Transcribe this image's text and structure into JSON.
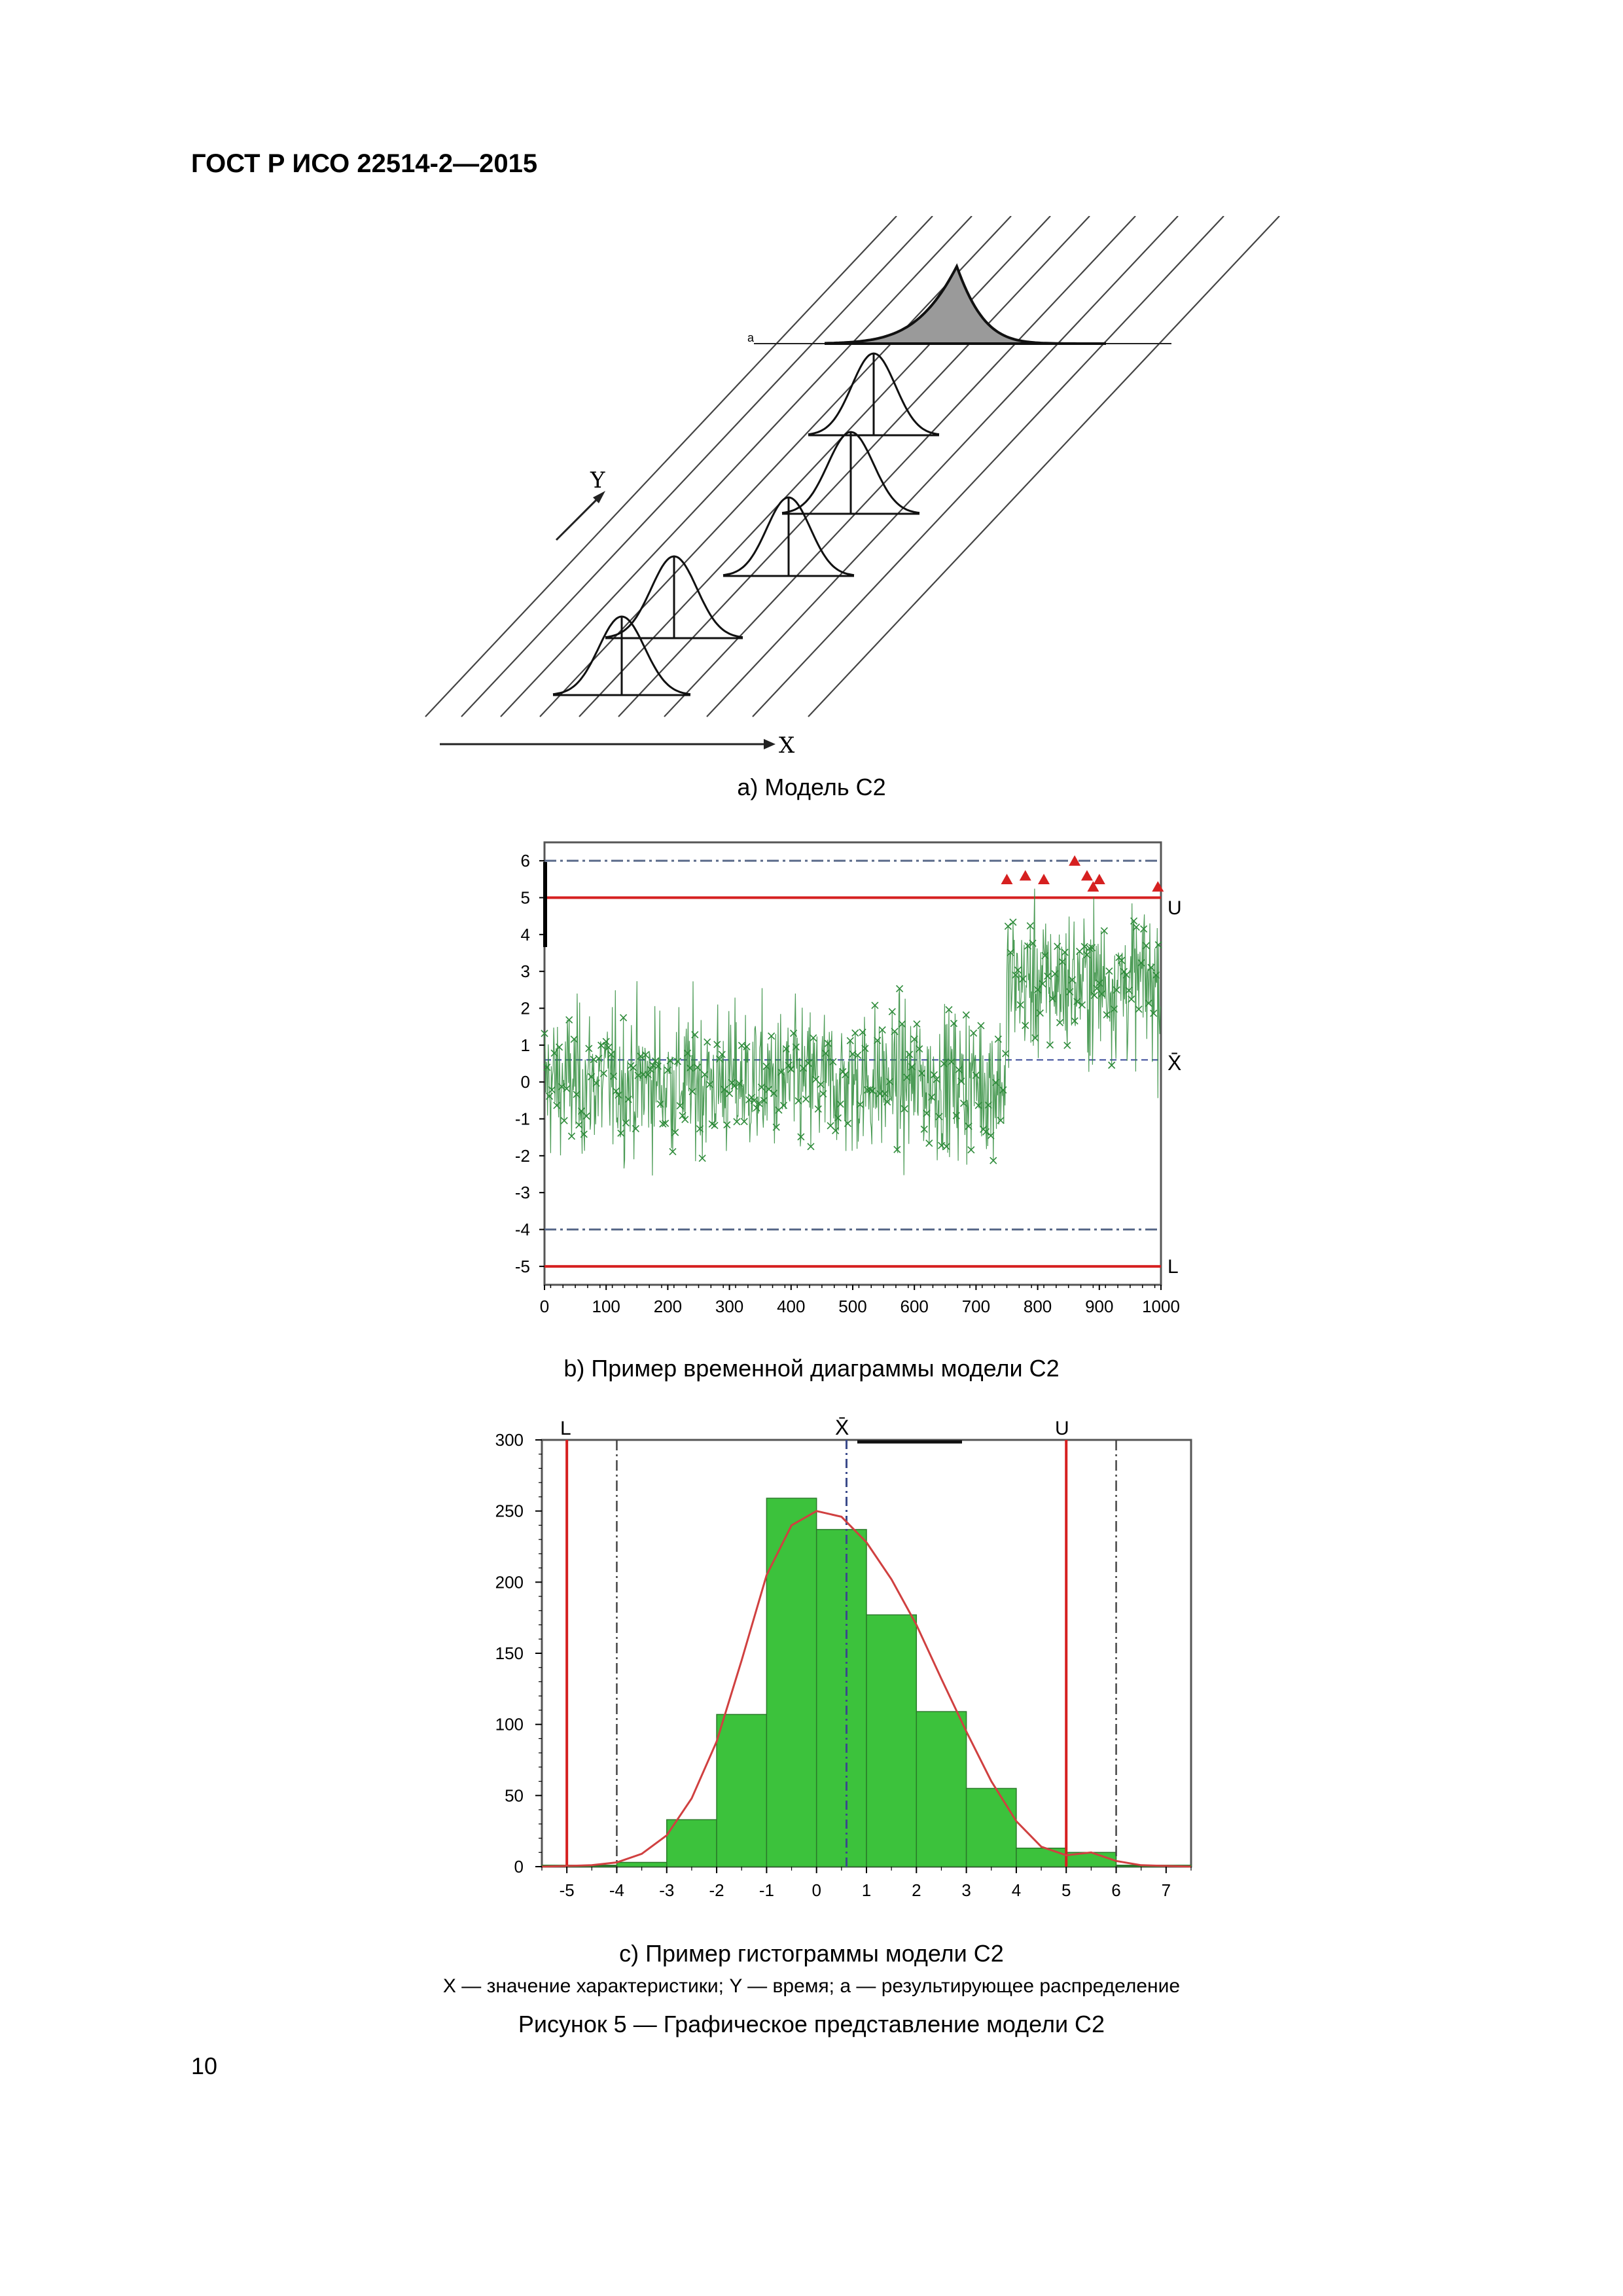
{
  "header": {
    "doc_id": "ГОСТ Р ИСО 22514-2—2015"
  },
  "figure_a": {
    "caption": "а) Модель С2",
    "y_label": "Y",
    "x_label": "X",
    "a_label": "а"
  },
  "figure_b": {
    "caption": "b) Пример временной диаграммы модели С2",
    "upper_label": "U",
    "lower_label": "L",
    "mean_label": "X̄",
    "chart_data": {
      "type": "line",
      "xlim": [
        0,
        1000
      ],
      "ylim": [
        -5.5,
        6.5
      ],
      "x_ticks": [
        "0",
        "100",
        "200",
        "300",
        "400",
        "500",
        "600",
        "700",
        "800",
        "900",
        "1000"
      ],
      "y_ticks": [
        "6",
        "5",
        "4",
        "3",
        "2",
        "1",
        "0",
        "-1",
        "-2",
        "-3",
        "-4",
        "-5"
      ],
      "y_tick_values": [
        6,
        5,
        4,
        3,
        2,
        1,
        0,
        -1,
        -2,
        -3,
        -4,
        -5
      ],
      "reference_lines": {
        "upper_limit": 5,
        "lower_limit": -5,
        "upper_dashdot": 6,
        "lower_dashdot": -4,
        "mean": 0.6
      },
      "segments": [
        {
          "x_start": 0,
          "x_end": 750,
          "level": 0
        },
        {
          "x_start": 750,
          "x_end": 1000,
          "level": 2.7
        }
      ],
      "n_points": 1000,
      "colors": {
        "series": "#2e8b3a",
        "limits": "#d62020",
        "reference": "#5a6a8a",
        "flags": "#d62020"
      }
    }
  },
  "figure_c": {
    "caption": "с) Пример гистограммы модели С2",
    "lower_label": "L",
    "upper_label": "U",
    "mean_label": "X̄",
    "chart_data": {
      "type": "bar",
      "x_ticks": [
        "-5",
        "-4",
        "-3",
        "-2",
        "-1",
        "0",
        "1",
        "2",
        "3",
        "4",
        "5",
        "6",
        "7"
      ],
      "y_ticks": [
        "300",
        "250",
        "200",
        "150",
        "100",
        "50",
        "0"
      ],
      "y_tick_values": [
        300,
        250,
        200,
        150,
        100,
        50,
        0
      ],
      "xlim": [
        -5.5,
        7.5
      ],
      "ylim": [
        0,
        300
      ],
      "bins": [
        {
          "from": -5.5,
          "to": -4.0,
          "value": 1
        },
        {
          "from": -4.0,
          "to": -3.0,
          "value": 3
        },
        {
          "from": -3.0,
          "to": -2.0,
          "value": 33
        },
        {
          "from": -2.0,
          "to": -1.0,
          "value": 107
        },
        {
          "from": -1.0,
          "to": 0.0,
          "value": 259
        },
        {
          "from": 0.0,
          "to": 1.0,
          "value": 237
        },
        {
          "from": 1.0,
          "to": 2.0,
          "value": 177
        },
        {
          "from": 2.0,
          "to": 3.0,
          "value": 109
        },
        {
          "from": 3.0,
          "to": 4.0,
          "value": 55
        },
        {
          "from": 4.0,
          "to": 5.0,
          "value": 13
        },
        {
          "from": 5.0,
          "to": 6.0,
          "value": 10
        },
        {
          "from": 6.0,
          "to": 7.5,
          "value": 1
        }
      ],
      "fit_curve": [
        [
          -5.5,
          0
        ],
        [
          -4.5,
          1
        ],
        [
          -4,
          3
        ],
        [
          -3.5,
          9
        ],
        [
          -3,
          22
        ],
        [
          -2.5,
          48
        ],
        [
          -2,
          88
        ],
        [
          -1.5,
          145
        ],
        [
          -1,
          205
        ],
        [
          -0.5,
          240
        ],
        [
          0,
          250
        ],
        [
          0.5,
          246
        ],
        [
          1,
          228
        ],
        [
          1.5,
          202
        ],
        [
          2,
          170
        ],
        [
          2.5,
          132
        ],
        [
          3,
          95
        ],
        [
          3.5,
          60
        ],
        [
          4,
          32
        ],
        [
          4.5,
          14
        ],
        [
          5,
          8
        ],
        [
          5.5,
          10
        ],
        [
          6,
          4
        ],
        [
          6.5,
          1
        ],
        [
          7.5,
          0
        ]
      ],
      "reference_lines": {
        "lower_limit": -5,
        "upper_limit": 5,
        "lower_dashdot": -4,
        "upper_dashdot": 6,
        "mean": 0.6
      },
      "colors": {
        "bars": "#3cc23c",
        "bar_edge": "#2a7a2a",
        "curve": "#d04040",
        "limits": "#d62020",
        "reference": "#444444",
        "mean": "#3a4a8a"
      }
    }
  },
  "footer": {
    "legend": "X — значение характеристики; Y — время; а — результирующее распределение",
    "figure_title": "Рисунок 5 — Графическое представление модели С2",
    "page_number": "10"
  }
}
